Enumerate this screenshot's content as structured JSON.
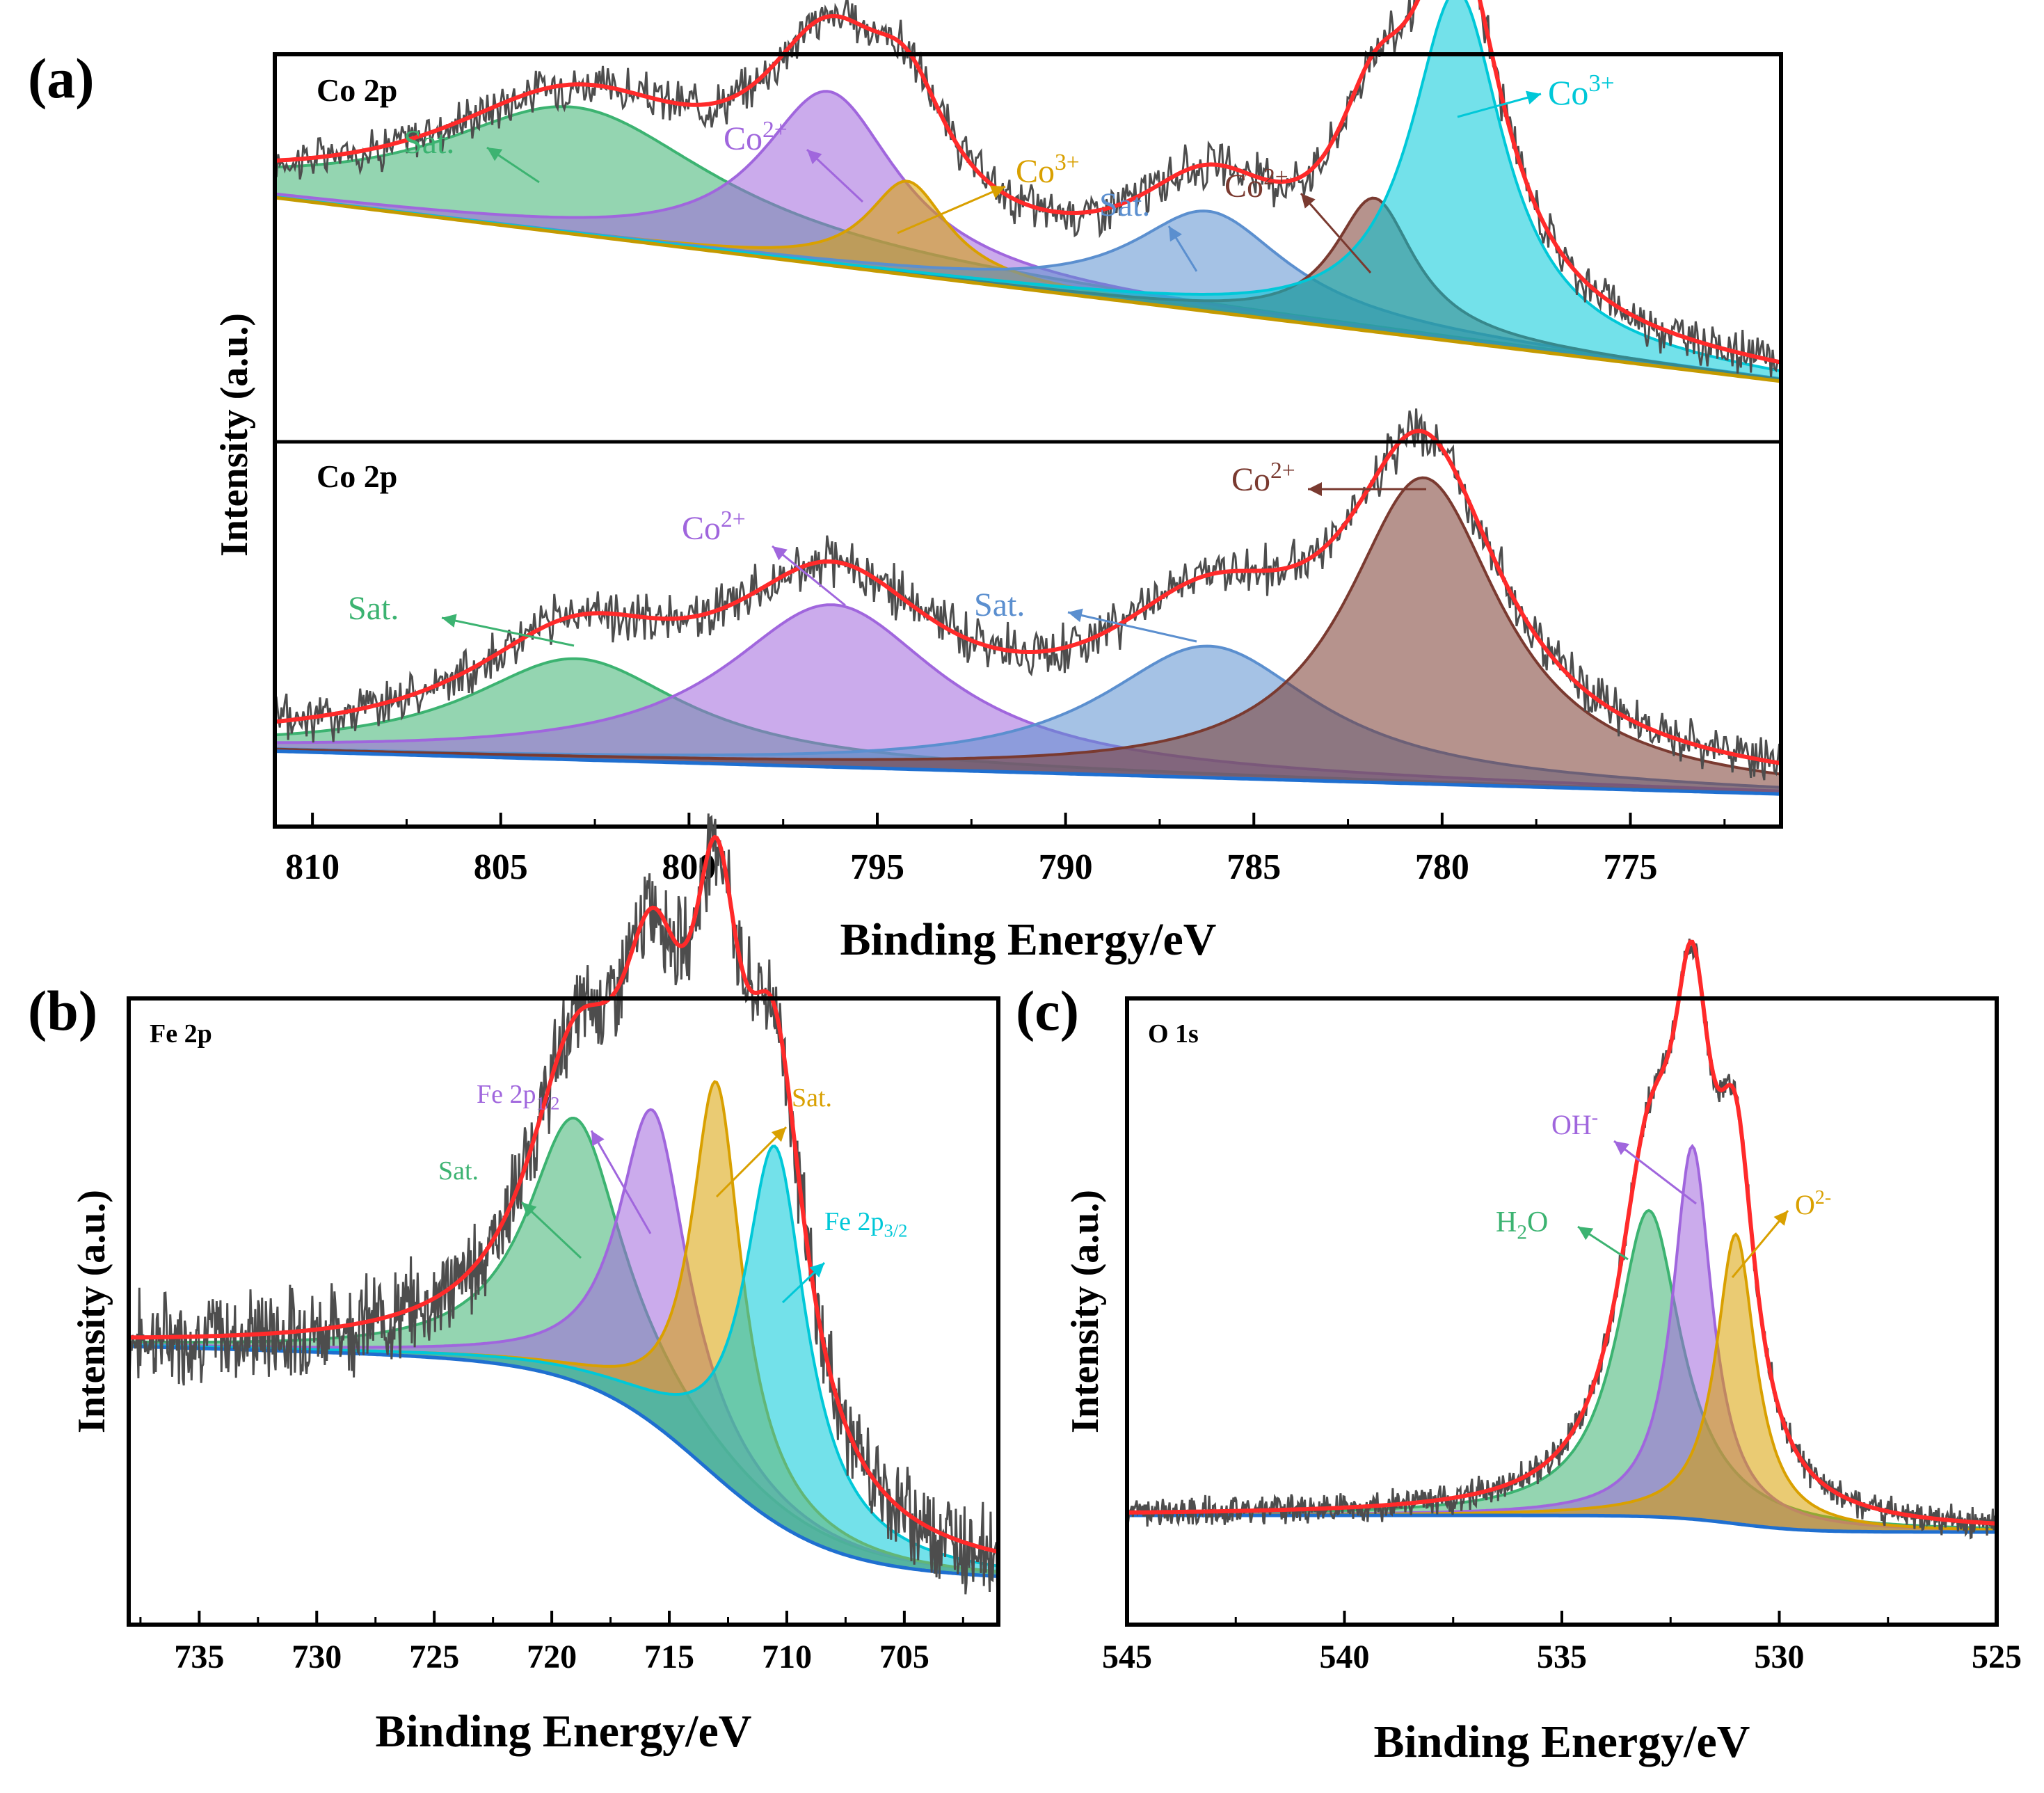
{
  "colors": {
    "raw": "#4d4d4d",
    "envelope": "#ff2a2a",
    "background": "#c49a00",
    "green": "#3cb371",
    "purple": "#a066dd",
    "orange": "#d9a000",
    "blue": "#5b8fcf",
    "brown": "#7a3a30",
    "cyan": "#00c8d8",
    "bgblue": "#1f6fd0"
  },
  "chart_data": [
    {
      "panel": "(a)",
      "type": "line",
      "subplots": [
        {
          "title": "Co 2p",
          "peaks": [
            {
              "label": "Sat.",
              "center": 803.0,
              "height": 0.38,
              "fwhm": 9.0,
              "color": "green"
            },
            {
              "label": "Co2+",
              "center": 796.3,
              "height": 0.52,
              "fwhm": 4.4,
              "color": "purple"
            },
            {
              "label": "Co3+",
              "center": 794.2,
              "height": 0.28,
              "fwhm": 2.6,
              "color": "orange"
            },
            {
              "label": "Sat.",
              "center": 786.2,
              "height": 0.3,
              "fwhm": 5.0,
              "color": "blue"
            },
            {
              "label": "Co2+",
              "center": 781.8,
              "height": 0.4,
              "fwhm": 2.6,
              "color": "brown"
            },
            {
              "label": "Co3+",
              "center": 779.6,
              "height": 1.05,
              "fwhm": 3.0,
              "color": "cyan"
            }
          ],
          "annotations": [
            {
              "base": "Sat.",
              "sup": ""
            },
            {
              "base": "Co",
              "sup": "2+"
            },
            {
              "base": "Co",
              "sup": "3+"
            },
            {
              "base": "Sat.",
              "sup": ""
            },
            {
              "base": "Co",
              "sup": "2+"
            },
            {
              "base": "Co",
              "sup": "3+"
            }
          ]
        },
        {
          "title": "Co 2p",
          "peaks": [
            {
              "label": "Sat.",
              "center": 803.0,
              "height": 0.33,
              "fwhm": 7.0,
              "color": "green"
            },
            {
              "label": "Co2+",
              "center": 796.2,
              "height": 0.53,
              "fwhm": 7.0,
              "color": "purple"
            },
            {
              "label": "Sat.",
              "center": 786.2,
              "height": 0.43,
              "fwhm": 7.0,
              "color": "blue"
            },
            {
              "label": "Co2+",
              "center": 780.5,
              "height": 1.0,
              "fwhm": 5.0,
              "color": "brown"
            }
          ],
          "annotations": [
            {
              "base": "Sat.",
              "sup": ""
            },
            {
              "base": "Co",
              "sup": "2+"
            },
            {
              "base": "Sat.",
              "sup": ""
            },
            {
              "base": "Co",
              "sup": "2+"
            }
          ]
        }
      ],
      "xlim": [
        811,
        771
      ],
      "xticks": [
        810,
        805,
        800,
        795,
        790,
        785,
        780,
        775
      ],
      "xlabel": "Binding Energy/eV",
      "ylabel": "Intensity (a.u.)"
    },
    {
      "panel": "(b)",
      "type": "line",
      "title": "Fe 2p",
      "peaks": [
        {
          "label": "Sat.",
          "center": 719.0,
          "height": 0.42,
          "fwhm": 5.0,
          "color": "green"
        },
        {
          "label": "Fe 2p1/2",
          "center": 715.7,
          "height": 0.5,
          "fwhm": 3.6,
          "color": "purple"
        },
        {
          "label": "Sat.",
          "center": 713.0,
          "height": 0.63,
          "fwhm": 2.6,
          "color": "orange"
        },
        {
          "label": "Fe 2p3/2",
          "center": 710.5,
          "height": 0.6,
          "fwhm": 3.2,
          "color": "cyan"
        }
      ],
      "annotations": [
        {
          "base": "Sat.",
          "sub": ""
        },
        {
          "base": "Fe 2p",
          "sub": "1/2"
        },
        {
          "base": "Sat.",
          "sub": ""
        },
        {
          "base": "Fe 2p",
          "sub": "3/2"
        }
      ],
      "xlim": [
        738,
        701
      ],
      "xticks": [
        735,
        730,
        725,
        720,
        715,
        710,
        705
      ],
      "xlabel": "Binding Energy/eV",
      "ylabel": "Intensity (a.u.)"
    },
    {
      "panel": "(c)",
      "type": "line",
      "title": "O 1s",
      "peaks": [
        {
          "label": "H2O",
          "center": 533.0,
          "height": 0.55,
          "fwhm": 1.8,
          "color": "green"
        },
        {
          "label": "OH-",
          "center": 532.0,
          "height": 0.67,
          "fwhm": 1.1,
          "color": "purple"
        },
        {
          "label": "O2-",
          "center": 531.0,
          "height": 0.52,
          "fwhm": 1.1,
          "color": "orange"
        }
      ],
      "annotations": [
        {
          "base": "H",
          "sub": "2",
          "tail": "O",
          "sup": ""
        },
        {
          "base": "OH",
          "sup": "-"
        },
        {
          "base": "O",
          "sup": "2-"
        }
      ],
      "xlim": [
        545,
        525
      ],
      "xticks": [
        545,
        540,
        535,
        530,
        525
      ],
      "xlabel": "Binding Energy/eV",
      "ylabel": "Intensity (a.u.)"
    }
  ]
}
